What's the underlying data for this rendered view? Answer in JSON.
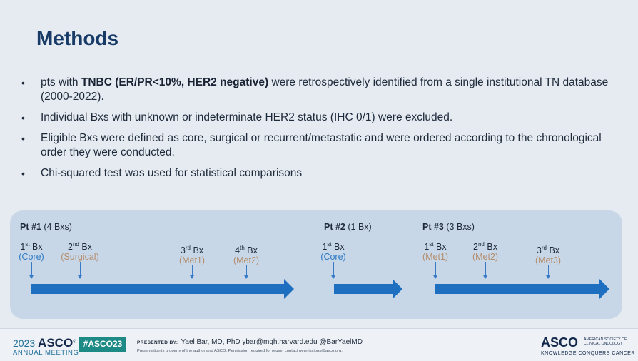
{
  "slide": {
    "title": "Methods"
  },
  "bullets": [
    {
      "pre": "pts with ",
      "bold": "TNBC (ER/PR<10%, HER2 negative)",
      "post": " were retrospectively identified from a single institutional TN database (2000-2022)."
    },
    {
      "text": "Individual Bxs with unknown or indeterminate HER2 status (IHC 0/1) were excluded."
    },
    {
      "text": "Eligible Bxs were defined as core, surgical or recurrent/metastatic and were ordered according to the chronological order they were conducted."
    },
    {
      "text": "Chi-squared test was used for statistical comparisons"
    }
  ],
  "bullet_glyph": "•",
  "timeline": {
    "colors": {
      "panel": "#c8d7e8",
      "arrow": "#1f6fc1",
      "core_label": "#2f7bc4",
      "other_label": "#b48e6c"
    },
    "patients": [
      {
        "name": "Pt #1",
        "count": "(4 Bxs)",
        "biopsies": [
          {
            "num": "1",
            "sup": "st",
            "word": "Bx",
            "type": "(Core)",
            "kind": "core"
          },
          {
            "num": "2",
            "sup": "nd",
            "word": "Bx",
            "type": "(Surgical)",
            "kind": "surgical"
          },
          {
            "num": "3",
            "sup": "rd",
            "word": "Bx",
            "type": "(Met1)",
            "kind": "met"
          },
          {
            "num": "4",
            "sup": "th",
            "word": "Bx",
            "type": "(Met2)",
            "kind": "met"
          }
        ]
      },
      {
        "name": "Pt #2",
        "count": "(1 Bx)",
        "biopsies": [
          {
            "num": "1",
            "sup": "st",
            "word": "Bx",
            "type": "(Core)",
            "kind": "core"
          }
        ]
      },
      {
        "name": "Pt #3",
        "count": "(3 Bxs)",
        "biopsies": [
          {
            "num": "1",
            "sup": "st",
            "word": "Bx",
            "type": "(Met1)",
            "kind": "met"
          },
          {
            "num": "2",
            "sup": "nd",
            "word": "Bx",
            "type": "(Met2)",
            "kind": "met"
          },
          {
            "num": "3",
            "sup": "rd",
            "word": "Bx",
            "type": "(Met3)",
            "kind": "met"
          }
        ]
      }
    ]
  },
  "footer": {
    "year": "2023",
    "asco": "ASCO",
    "registered": "®",
    "annual_meeting": "ANNUAL MEETING",
    "hashtag": "#ASCO23",
    "presented_by_label": "PRESENTED BY:",
    "presenter": "Yael Bar, MD, PhD  ybar@mgh.harvard.edu  @BarYaelMD",
    "notice": "Presentation is property of the author and ASCO. Permission required for reuse; contact permissions@asco.org.",
    "logo_text": "ASCO",
    "society_line1": "AMERICAN SOCIETY OF",
    "society_line2": "CLINICAL ONCOLOGY",
    "tagline": "KNOWLEDGE CONQUERS CANCER"
  }
}
